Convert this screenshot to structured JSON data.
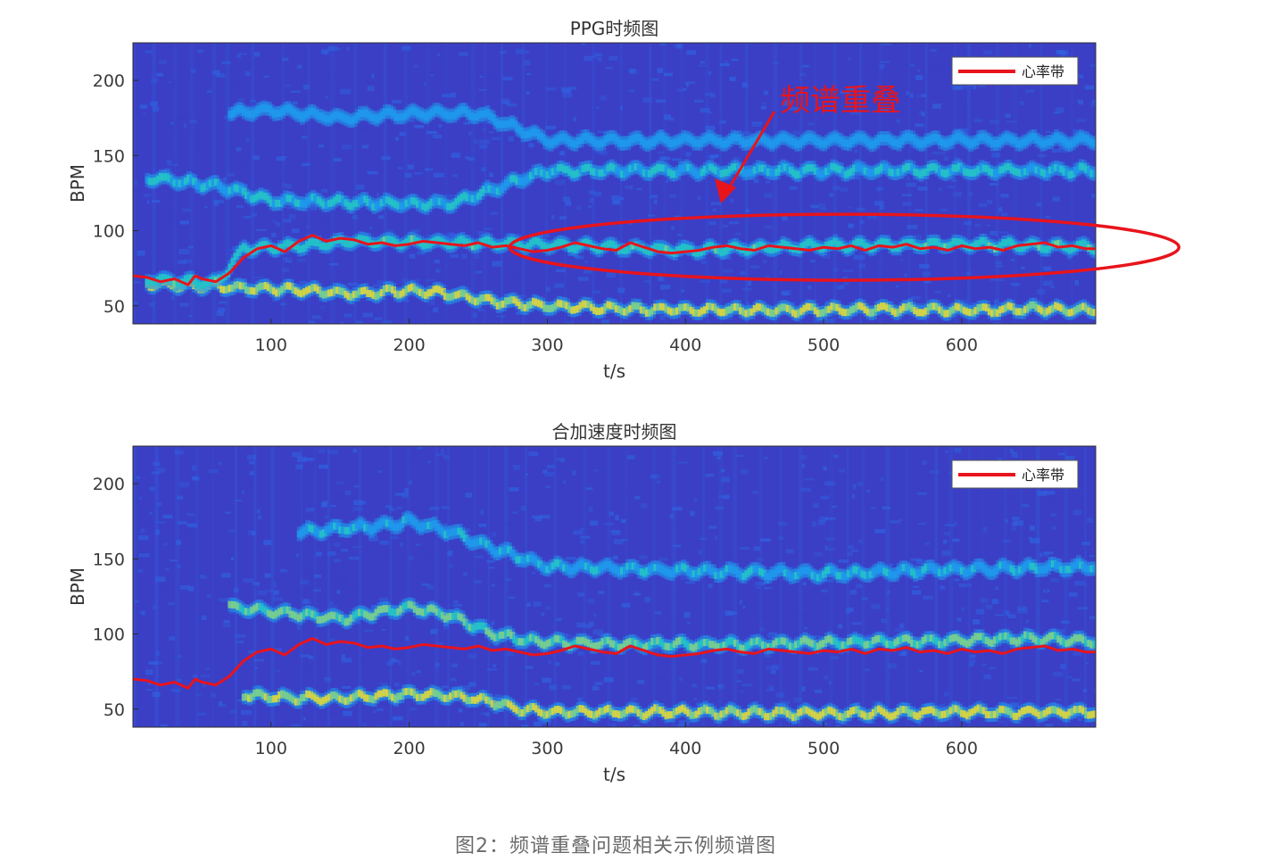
{
  "chart_data": [
    {
      "type": "heatmap",
      "title": "PPG时频图",
      "xlabel": "t/s",
      "ylabel": "BPM",
      "xlim": [
        0,
        697
      ],
      "ylim": [
        38,
        225
      ],
      "xticks": [
        100,
        200,
        300,
        400,
        500,
        600
      ],
      "yticks": [
        50,
        100,
        150,
        200
      ],
      "legend": {
        "label": "心率带",
        "color": "#e8141c",
        "position": "top-right"
      },
      "annotation": {
        "text": "频谱重叠",
        "color": "#e8141c"
      },
      "colormap": [
        "#3b3fc6",
        "#2f62e0",
        "#1e98ec",
        "#25c4c6",
        "#7ed28a",
        "#e2d83a"
      ],
      "bands": [
        {
          "label": "dominant",
          "x": [
            10,
            80,
            130,
            160,
            200,
            220,
            260,
            300,
            360,
            420,
            480,
            540,
            600,
            660,
            697
          ],
          "y": [
            65,
            62,
            60,
            58,
            60,
            59,
            53,
            50,
            48,
            47,
            47,
            48,
            47,
            48,
            47
          ],
          "intensity": 0.95
        },
        {
          "label": "heart",
          "x": [
            10,
            60,
            80,
            120,
            160,
            220,
            280,
            320,
            400,
            500,
            600,
            697
          ],
          "y": [
            68,
            65,
            88,
            90,
            93,
            92,
            91,
            90,
            87,
            90,
            91,
            89
          ],
          "intensity": 0.6
        },
        {
          "label": "harmonic-2",
          "x": [
            10,
            60,
            100,
            200,
            230,
            300,
            400,
            500,
            600,
            697
          ],
          "y": [
            135,
            130,
            120,
            118,
            118,
            140,
            140,
            140,
            140,
            140
          ],
          "intensity": 0.5
        },
        {
          "label": "harmonic-3",
          "x": [
            70,
            100,
            150,
            200,
            250,
            300,
            400,
            500,
            600,
            697
          ],
          "y": [
            178,
            180,
            175,
            178,
            178,
            160,
            160,
            160,
            160,
            160
          ],
          "intensity": 0.4
        }
      ],
      "series": [
        {
          "name": "心率带",
          "x": [
            0,
            10,
            20,
            30,
            40,
            45,
            50,
            60,
            70,
            80,
            90,
            100,
            110,
            120,
            130,
            140,
            150,
            160,
            170,
            180,
            190,
            200,
            210,
            220,
            230,
            240,
            250,
            260,
            270,
            280,
            290,
            300,
            310,
            320,
            330,
            340,
            350,
            360,
            370,
            380,
            390,
            400,
            410,
            420,
            430,
            440,
            450,
            460,
            470,
            480,
            490,
            500,
            510,
            520,
            530,
            540,
            550,
            560,
            570,
            580,
            590,
            600,
            610,
            620,
            630,
            640,
            650,
            660,
            670,
            680,
            690,
            697
          ],
          "y": [
            70,
            69,
            66,
            68,
            64,
            70,
            68,
            66,
            72,
            82,
            88,
            90,
            86,
            93,
            97,
            93,
            95,
            94,
            91,
            92,
            90,
            91,
            93,
            92,
            91,
            90,
            92,
            89,
            90,
            88,
            86,
            87,
            89,
            92,
            90,
            88,
            87,
            92,
            89,
            86,
            85,
            86,
            87,
            89,
            90,
            88,
            87,
            90,
            89,
            88,
            87,
            89,
            88,
            90,
            87,
            90,
            89,
            91,
            88,
            89,
            87,
            90,
            88,
            89,
            87,
            90,
            91,
            92,
            89,
            90,
            88,
            88
          ]
        }
      ]
    },
    {
      "type": "heatmap",
      "title": "合加速度时频图",
      "xlabel": "t/s",
      "ylabel": "BPM",
      "xlim": [
        0,
        697
      ],
      "ylim": [
        38,
        225
      ],
      "xticks": [
        100,
        200,
        300,
        400,
        500,
        600
      ],
      "yticks": [
        50,
        100,
        150,
        200
      ],
      "legend": {
        "label": "心率带",
        "color": "#e8141c",
        "position": "top-right"
      },
      "colormap": [
        "#3b3fc6",
        "#2f62e0",
        "#1e98ec",
        "#25c4c6",
        "#7ed28a",
        "#e2d83a"
      ],
      "bands": [
        {
          "label": "fundamental",
          "x": [
            80,
            100,
            150,
            200,
            240,
            260,
            280,
            300,
            400,
            500,
            600,
            697
          ],
          "y": [
            60,
            58,
            57,
            60,
            58,
            55,
            50,
            48,
            48,
            47,
            48,
            48
          ],
          "intensity": 0.95
        },
        {
          "label": "harmonic-2",
          "x": [
            70,
            100,
            150,
            200,
            230,
            260,
            290,
            350,
            450,
            550,
            650,
            697
          ],
          "y": [
            118,
            115,
            110,
            118,
            112,
            100,
            95,
            93,
            93,
            95,
            97,
            95
          ],
          "intensity": 0.75
        },
        {
          "label": "harmonic-3",
          "x": [
            120,
            150,
            180,
            200,
            230,
            250,
            300,
            400,
            500,
            600,
            697
          ],
          "y": [
            168,
            170,
            172,
            175,
            168,
            160,
            145,
            142,
            140,
            143,
            145
          ],
          "intensity": 0.45
        }
      ],
      "series": [
        {
          "name": "心率带",
          "x": [
            0,
            10,
            20,
            30,
            40,
            45,
            50,
            60,
            70,
            80,
            90,
            100,
            110,
            120,
            130,
            140,
            150,
            160,
            170,
            180,
            190,
            200,
            210,
            220,
            230,
            240,
            250,
            260,
            270,
            280,
            290,
            300,
            310,
            320,
            330,
            340,
            350,
            360,
            370,
            380,
            390,
            400,
            410,
            420,
            430,
            440,
            450,
            460,
            470,
            480,
            490,
            500,
            510,
            520,
            530,
            540,
            550,
            560,
            570,
            580,
            590,
            600,
            610,
            620,
            630,
            640,
            650,
            660,
            670,
            680,
            690,
            697
          ],
          "y": [
            70,
            69,
            66,
            68,
            64,
            70,
            68,
            66,
            72,
            82,
            88,
            90,
            86,
            93,
            97,
            93,
            95,
            94,
            91,
            92,
            90,
            91,
            93,
            92,
            91,
            90,
            92,
            89,
            90,
            88,
            86,
            87,
            89,
            92,
            90,
            88,
            87,
            92,
            89,
            86,
            85,
            86,
            87,
            89,
            90,
            88,
            87,
            90,
            89,
            88,
            87,
            89,
            88,
            90,
            87,
            90,
            89,
            91,
            88,
            89,
            87,
            90,
            88,
            89,
            87,
            90,
            91,
            92,
            89,
            90,
            88,
            88
          ]
        }
      ]
    }
  ],
  "caption": "图2：频谱重叠问题相关示例频谱图"
}
